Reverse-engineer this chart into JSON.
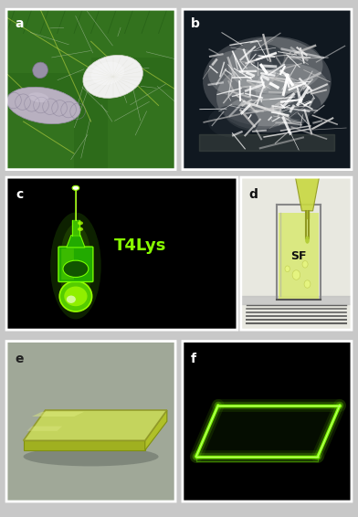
{
  "figure_bg": "#c8c8c8",
  "labels": {
    "a": "a",
    "b": "b",
    "c": "c",
    "d": "d",
    "e": "e",
    "f": "f"
  },
  "label_color_dark": "white",
  "label_color_light": "white",
  "label_fontsize": 10,
  "bright_green": "#7fff00",
  "T4Lys_color": "#88ff00",
  "panel_rects": {
    "a": [
      0.018,
      0.672,
      0.472,
      0.31
    ],
    "b": [
      0.51,
      0.672,
      0.472,
      0.31
    ],
    "c": [
      0.018,
      0.362,
      0.645,
      0.295
    ],
    "d": [
      0.673,
      0.362,
      0.309,
      0.295
    ],
    "e": [
      0.018,
      0.03,
      0.472,
      0.31
    ],
    "f": [
      0.51,
      0.03,
      0.472,
      0.31
    ]
  }
}
